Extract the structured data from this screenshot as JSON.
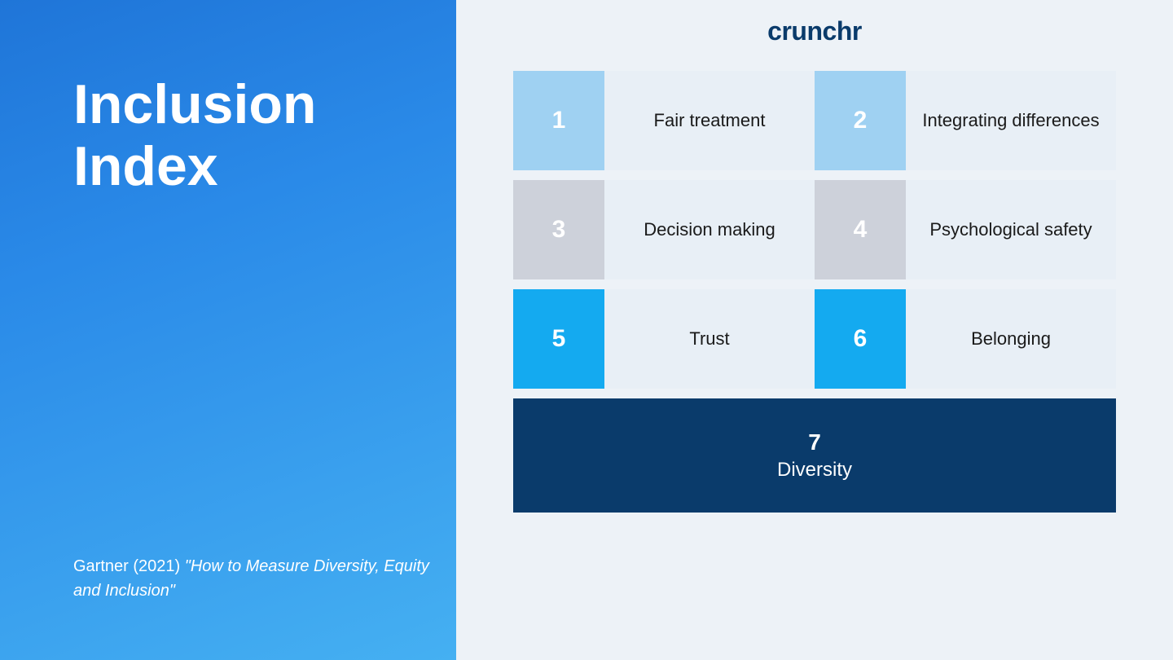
{
  "layout": {
    "left_bg_gradient": "linear-gradient(160deg, #1f75d8 0%, #2a8ae8 35%, #45b0f2 100%)",
    "right_bg": "#edf2f7",
    "title_color": "#ffffff",
    "citation_color": "#ffffff",
    "label_text_color": "#1a1a1a",
    "logo_color": "#0a3b6b"
  },
  "title": "Inclusion Index",
  "citation_author": "Gartner (2021) ",
  "citation_title": "\"How to Measure Diversity, Equity and Inclusion\"",
  "logo_text": "crunchr",
  "items": [
    {
      "num": "1",
      "label": "Fair treatment",
      "num_bg": "#9fd1f2",
      "label_bg": "#e8eff6"
    },
    {
      "num": "2",
      "label": "Integrating differences",
      "num_bg": "#9fd1f2",
      "label_bg": "#e8eff6"
    },
    {
      "num": "3",
      "label": "Decision making",
      "num_bg": "#cdd1da",
      "label_bg": "#e8eff6"
    },
    {
      "num": "4",
      "label": "Psychological safety",
      "num_bg": "#cdd1da",
      "label_bg": "#e8eff6"
    },
    {
      "num": "5",
      "label": "Trust",
      "num_bg": "#14aaf0",
      "label_bg": "#e8eff6"
    },
    {
      "num": "6",
      "label": "Belonging",
      "num_bg": "#14aaf0",
      "label_bg": "#e8eff6"
    }
  ],
  "footer": {
    "num": "7",
    "label": "Diversity",
    "bg": "#0a3b6b"
  }
}
